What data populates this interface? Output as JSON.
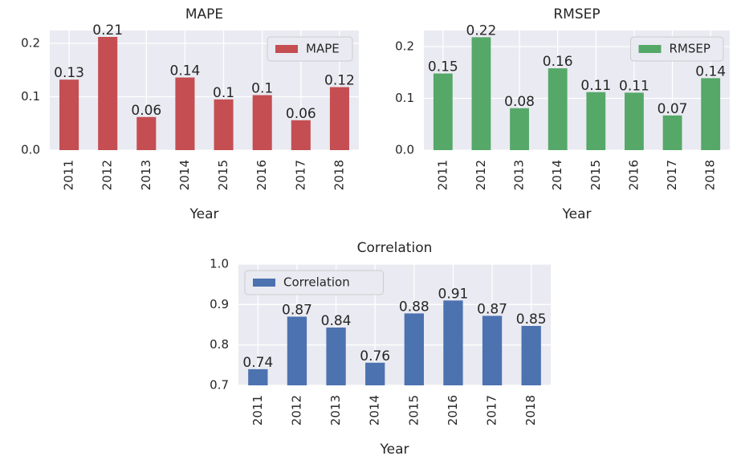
{
  "chart_data": [
    {
      "type": "bar",
      "title": "MAPE",
      "xlabel": "Year",
      "categories": [
        "2011",
        "2012",
        "2013",
        "2014",
        "2015",
        "2016",
        "2017",
        "2018"
      ],
      "series": [
        {
          "name": "MAPE",
          "color": "#c44e52",
          "values": [
            0.132,
            0.212,
            0.062,
            0.136,
            0.095,
            0.103,
            0.056,
            0.118
          ],
          "value_labels": [
            "0.13",
            "0.21",
            "0.06",
            "0.14",
            "0.1",
            "0.1",
            "0.06",
            "0.12"
          ]
        }
      ],
      "ylim": [
        0,
        0.224
      ],
      "yticks": [
        {
          "value": 0,
          "label": "0.0"
        },
        0.1,
        0.2
      ],
      "grid": true,
      "legend": "upper right"
    },
    {
      "type": "bar",
      "title": "RMSEP",
      "xlabel": "Year",
      "categories": [
        "2011",
        "2012",
        "2013",
        "2014",
        "2015",
        "2016",
        "2017",
        "2018"
      ],
      "series": [
        {
          "name": "RMSEP",
          "color": "#55a868",
          "values": [
            0.148,
            0.218,
            0.081,
            0.158,
            0.112,
            0.111,
            0.067,
            0.139
          ],
          "value_labels": [
            "0.15",
            "0.22",
            "0.08",
            "0.16",
            "0.11",
            "0.11",
            "0.07",
            "0.14"
          ]
        }
      ],
      "ylim": [
        0,
        0.231
      ],
      "yticks": [
        {
          "value": 0,
          "label": "0.0"
        },
        0.1,
        0.2
      ],
      "grid": true,
      "legend": "upper right"
    },
    {
      "type": "bar",
      "title": "Correlation",
      "xlabel": "Year",
      "categories": [
        "2011",
        "2012",
        "2013",
        "2014",
        "2015",
        "2016",
        "2017",
        "2018"
      ],
      "series": [
        {
          "name": "Correlation",
          "color": "#4c72b0",
          "values": [
            0.74,
            0.87,
            0.843,
            0.756,
            0.878,
            0.91,
            0.872,
            0.847
          ],
          "value_labels": [
            "0.74",
            "0.87",
            "0.84",
            "0.76",
            "0.88",
            "0.91",
            "0.87",
            "0.85"
          ]
        }
      ],
      "ylim": [
        0.7,
        1.0
      ],
      "yticks": [
        0.7,
        0.8,
        0.9,
        {
          "value": 1.0,
          "label": "1.0"
        }
      ],
      "grid": true,
      "legend": "upper left"
    }
  ]
}
